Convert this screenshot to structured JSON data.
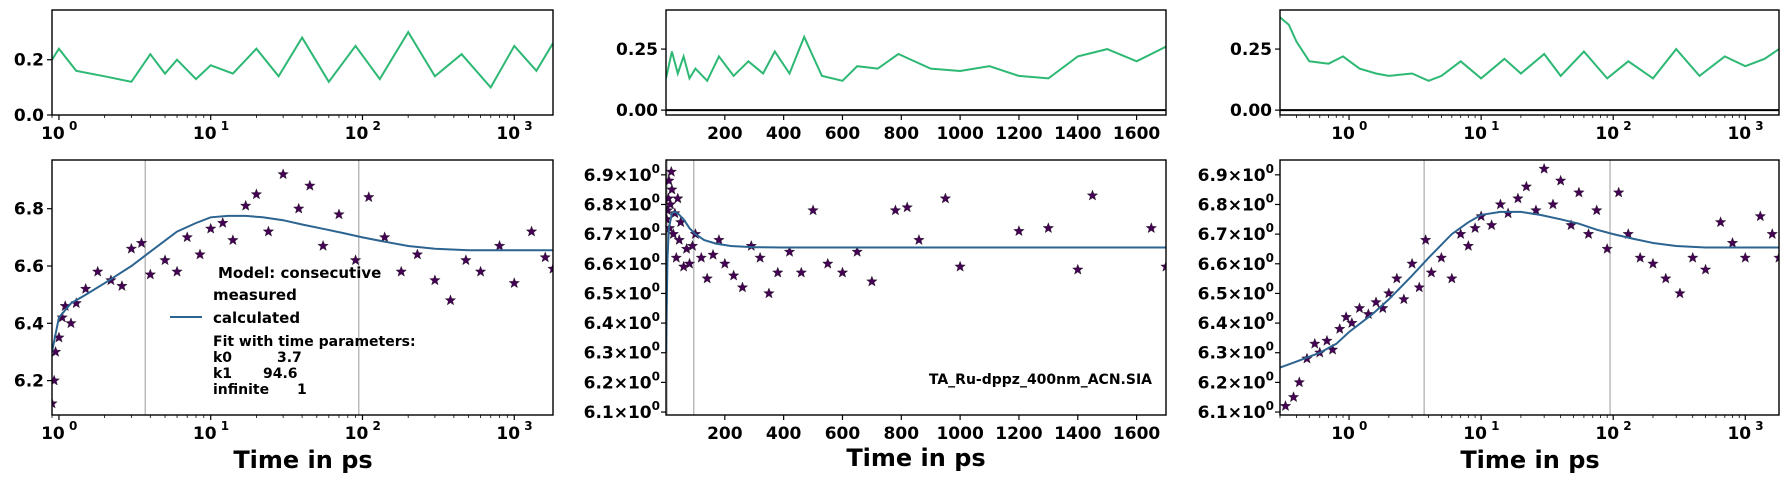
{
  "colors": {
    "residual": "#2db873",
    "measured": "#440154",
    "calculated": "#2c6491",
    "vline": "#9a9a9a",
    "zero_line": "#000000"
  },
  "legend": {
    "title": "Model: consecutive",
    "measured": "measured",
    "calculated": "calculated",
    "fit_header": "Fit with time parameters:",
    "params": [
      {
        "name": "k0",
        "value": "3.7"
      },
      {
        "name": "k1",
        "value": "94.6"
      },
      {
        "name": "infinite",
        "value": "1"
      }
    ]
  },
  "dataset_label": "TA_Ru-dppz_400nm_ACN.SIA",
  "x_label": "Time in ps",
  "chart_data": [
    {
      "type": "line",
      "panel": "residual-left",
      "xscale": "log",
      "xlim": [
        0.9,
        1800
      ],
      "ylim": [
        0,
        0.38
      ],
      "yticks": [
        0.0,
        0.2
      ],
      "ytick_labels": [
        "0.0",
        "0.2"
      ],
      "xticks": [
        1,
        10,
        100,
        1000
      ],
      "xtick_labels": [
        "10",
        "10",
        "10",
        "10"
      ],
      "xtick_exps": [
        "0",
        "1",
        "2",
        "3"
      ],
      "series": [
        {
          "x": [
            0.9,
            1.0,
            1.3,
            2.0,
            3.0,
            4.0,
            5.0,
            6.0,
            8.0,
            10.0,
            14.0,
            20.0,
            28.0,
            40.0,
            60.0,
            90.0,
            130.0,
            200.0,
            300.0,
            450.0,
            700.0,
            1000.0,
            1400.0,
            1800.0
          ],
          "y": [
            0.2,
            0.24,
            0.16,
            0.14,
            0.12,
            0.22,
            0.15,
            0.2,
            0.13,
            0.18,
            0.15,
            0.24,
            0.14,
            0.28,
            0.12,
            0.25,
            0.13,
            0.3,
            0.14,
            0.22,
            0.1,
            0.25,
            0.16,
            0.26
          ]
        }
      ]
    },
    {
      "type": "line",
      "panel": "residual-middle",
      "xscale": "linear",
      "xlim": [
        0,
        1700
      ],
      "ylim": [
        -0.02,
        0.41
      ],
      "yticks": [
        0.0,
        0.25
      ],
      "ytick_labels": [
        "0.00",
        "0.25"
      ],
      "xticks": [
        200,
        400,
        600,
        800,
        1000,
        1200,
        1400,
        1600
      ],
      "xtick_labels": [
        "200",
        "400",
        "600",
        "800",
        "1000",
        "1200",
        "1400",
        "1600"
      ],
      "series": [
        {
          "x": [
            0,
            20,
            40,
            60,
            80,
            100,
            140,
            180,
            230,
            280,
            330,
            370,
            420,
            470,
            530,
            600,
            650,
            720,
            790,
            900,
            1000,
            1100,
            1200,
            1300,
            1400,
            1500,
            1600,
            1700
          ],
          "y": [
            0.13,
            0.24,
            0.15,
            0.22,
            0.13,
            0.17,
            0.12,
            0.22,
            0.14,
            0.2,
            0.15,
            0.24,
            0.15,
            0.3,
            0.14,
            0.12,
            0.18,
            0.17,
            0.23,
            0.17,
            0.16,
            0.18,
            0.14,
            0.13,
            0.22,
            0.25,
            0.2,
            0.26
          ]
        }
      ]
    },
    {
      "type": "line",
      "panel": "residual-right",
      "xscale": "log",
      "xlim": [
        0.3,
        1800
      ],
      "ylim": [
        -0.02,
        0.41
      ],
      "yticks": [
        0.0,
        0.25
      ],
      "ytick_labels": [
        "0.00",
        "0.25"
      ],
      "xticks": [
        1,
        10,
        100,
        1000
      ],
      "xtick_labels": [
        "10",
        "10",
        "10",
        "10"
      ],
      "xtick_exps": [
        "0",
        "1",
        "2",
        "3"
      ],
      "series": [
        {
          "x": [
            0.3,
            0.35,
            0.4,
            0.5,
            0.7,
            0.9,
            1.2,
            1.6,
            2.0,
            3.0,
            4.0,
            5.0,
            7.0,
            10.0,
            15.0,
            20.0,
            30.0,
            40.0,
            60.0,
            90.0,
            130.0,
            200.0,
            300.0,
            450.0,
            700.0,
            1000.0,
            1400.0,
            1800.0
          ],
          "y": [
            0.38,
            0.35,
            0.28,
            0.2,
            0.19,
            0.22,
            0.17,
            0.15,
            0.14,
            0.15,
            0.12,
            0.14,
            0.2,
            0.13,
            0.21,
            0.15,
            0.23,
            0.14,
            0.24,
            0.13,
            0.2,
            0.13,
            0.25,
            0.14,
            0.22,
            0.18,
            0.21,
            0.25
          ]
        }
      ]
    },
    {
      "type": "scatter",
      "panel": "kinetics-left",
      "xscale": "log",
      "xlim": [
        0.9,
        1800
      ],
      "ylim": [
        6.08,
        6.97
      ],
      "yticks": [
        6.2,
        6.4,
        6.6,
        6.8
      ],
      "ytick_labels": [
        "6.2",
        "6.4",
        "6.6",
        "6.8"
      ],
      "xticks": [
        1,
        10,
        100,
        1000
      ],
      "xtick_labels": [
        "10",
        "10",
        "10",
        "10"
      ],
      "xtick_exps": [
        "0",
        "1",
        "2",
        "3"
      ],
      "vlines": [
        3.7,
        94.6
      ],
      "series": [
        {
          "name": "measured",
          "x": [
            0.9,
            0.93,
            0.95,
            1.0,
            1.05,
            1.1,
            1.2,
            1.3,
            1.5,
            1.8,
            2.2,
            2.6,
            3.0,
            3.5,
            4.0,
            5.0,
            6.0,
            7.0,
            8.5,
            10.0,
            12.0,
            14.0,
            17.0,
            20.0,
            24.0,
            30.0,
            38.0,
            45.0,
            55.0,
            70.0,
            90.0,
            110.0,
            140.0,
            180.0,
            230.0,
            300.0,
            380.0,
            480.0,
            600.0,
            800.0,
            1000.0,
            1300.0,
            1600.0,
            1800.0
          ],
          "y": [
            6.12,
            6.2,
            6.3,
            6.35,
            6.42,
            6.46,
            6.4,
            6.47,
            6.52,
            6.58,
            6.55,
            6.53,
            6.66,
            6.68,
            6.57,
            6.62,
            6.58,
            6.7,
            6.64,
            6.73,
            6.75,
            6.69,
            6.81,
            6.85,
            6.72,
            6.92,
            6.8,
            6.88,
            6.67,
            6.78,
            6.62,
            6.84,
            6.7,
            6.58,
            6.64,
            6.55,
            6.48,
            6.62,
            6.58,
            6.67,
            6.54,
            6.72,
            6.63,
            6.59
          ]
        },
        {
          "name": "calculated",
          "x": [
            0.9,
            1.0,
            1.2,
            1.5,
            2.0,
            3.0,
            4.0,
            6.0,
            8.0,
            10.0,
            13.0,
            17.0,
            22.0,
            30.0,
            40.0,
            55.0,
            75.0,
            100.0,
            140.0,
            200.0,
            300.0,
            500.0,
            800.0,
            1200.0,
            1800.0
          ],
          "y": [
            6.3,
            6.42,
            6.47,
            6.5,
            6.54,
            6.6,
            6.65,
            6.72,
            6.75,
            6.77,
            6.775,
            6.775,
            6.77,
            6.76,
            6.745,
            6.73,
            6.715,
            6.7,
            6.685,
            6.67,
            6.66,
            6.655,
            6.655,
            6.655,
            6.655
          ]
        }
      ]
    },
    {
      "type": "scatter",
      "panel": "kinetics-middle",
      "xscale": "linear",
      "xlim": [
        0,
        1700
      ],
      "ylim": [
        6.09,
        6.95
      ],
      "yticks": [
        6.1,
        6.2,
        6.3,
        6.4,
        6.5,
        6.6,
        6.7,
        6.8,
        6.9
      ],
      "ytick_labels": [
        "6.1",
        "6.2",
        "6.3",
        "6.4",
        "6.5",
        "6.6",
        "6.7",
        "6.8",
        "6.9"
      ],
      "xticks": [
        200,
        400,
        600,
        800,
        1000,
        1200,
        1400,
        1600
      ],
      "xtick_labels": [
        "200",
        "400",
        "600",
        "800",
        "1000",
        "1200",
        "1400",
        "1600"
      ],
      "vlines": [
        3.7,
        94.6
      ],
      "series": [
        {
          "name": "measured",
          "x": [
            2,
            5,
            8,
            10,
            12,
            15,
            18,
            20,
            25,
            30,
            35,
            40,
            45,
            50,
            60,
            70,
            80,
            90,
            100,
            120,
            140,
            160,
            180,
            200,
            230,
            260,
            290,
            320,
            350,
            380,
            420,
            460,
            500,
            550,
            600,
            650,
            700,
            780,
            820,
            860,
            950,
            1000,
            1200,
            1300,
            1400,
            1450,
            1650,
            1700
          ],
          "y": [
            6.75,
            6.78,
            6.82,
            6.88,
            6.72,
            6.8,
            6.91,
            6.85,
            6.7,
            6.77,
            6.62,
            6.82,
            6.68,
            6.74,
            6.59,
            6.65,
            6.6,
            6.66,
            6.7,
            6.62,
            6.55,
            6.63,
            6.68,
            6.6,
            6.56,
            6.52,
            6.66,
            6.62,
            6.5,
            6.57,
            6.64,
            6.57,
            6.78,
            6.6,
            6.57,
            6.64,
            6.54,
            6.78,
            6.79,
            6.68,
            6.82,
            6.59,
            6.71,
            6.72,
            6.58,
            6.83,
            6.72,
            6.59
          ]
        },
        {
          "name": "calculated",
          "x": [
            0,
            5,
            10,
            20,
            30,
            40,
            50,
            60,
            80,
            100,
            130,
            170,
            220,
            300,
            400,
            600,
            900,
            1300,
            1700
          ],
          "y": [
            6.3,
            6.62,
            6.72,
            6.77,
            6.775,
            6.77,
            6.76,
            6.75,
            6.72,
            6.7,
            6.68,
            6.668,
            6.66,
            6.656,
            6.655,
            6.655,
            6.655,
            6.655,
            6.655
          ]
        }
      ]
    },
    {
      "type": "scatter",
      "panel": "kinetics-right",
      "xscale": "log",
      "xlim": [
        0.3,
        1800
      ],
      "ylim": [
        6.09,
        6.95
      ],
      "yticks": [
        6.1,
        6.2,
        6.3,
        6.4,
        6.5,
        6.6,
        6.7,
        6.8,
        6.9
      ],
      "ytick_labels": [
        "6.1",
        "6.2",
        "6.3",
        "6.4",
        "6.5",
        "6.6",
        "6.7",
        "6.8",
        "6.9"
      ],
      "xticks": [
        1,
        10,
        100,
        1000
      ],
      "xtick_labels": [
        "10",
        "10",
        "10",
        "10"
      ],
      "xtick_exps": [
        "0",
        "1",
        "2",
        "3"
      ],
      "vlines": [
        3.7,
        94.6
      ],
      "series": [
        {
          "name": "measured",
          "x": [
            0.33,
            0.38,
            0.42,
            0.48,
            0.55,
            0.6,
            0.68,
            0.75,
            0.85,
            0.95,
            1.05,
            1.2,
            1.4,
            1.6,
            1.8,
            2.0,
            2.3,
            2.6,
            3.0,
            3.4,
            3.8,
            4.2,
            5.0,
            6.0,
            7.0,
            8.0,
            9.0,
            10.0,
            12.0,
            14.0,
            16.0,
            19.0,
            22.0,
            26.0,
            30.0,
            35.0,
            40.0,
            48.0,
            55.0,
            65.0,
            75.0,
            90.0,
            110.0,
            130.0,
            160.0,
            200.0,
            250.0,
            320.0,
            400.0,
            500.0,
            650.0,
            800.0,
            1000.0,
            1300.0,
            1600.0,
            1800.0
          ],
          "y": [
            6.12,
            6.15,
            6.2,
            6.28,
            6.33,
            6.3,
            6.34,
            6.31,
            6.38,
            6.42,
            6.4,
            6.45,
            6.43,
            6.47,
            6.45,
            6.5,
            6.55,
            6.48,
            6.6,
            6.52,
            6.68,
            6.57,
            6.62,
            6.55,
            6.7,
            6.66,
            6.72,
            6.76,
            6.73,
            6.8,
            6.77,
            6.82,
            6.86,
            6.78,
            6.92,
            6.8,
            6.88,
            6.73,
            6.84,
            6.7,
            6.78,
            6.65,
            6.84,
            6.7,
            6.62,
            6.6,
            6.55,
            6.5,
            6.62,
            6.58,
            6.74,
            6.67,
            6.62,
            6.76,
            6.7,
            6.62
          ]
        },
        {
          "name": "calculated",
          "x": [
            0.3,
            0.4,
            0.6,
            0.8,
            1.0,
            1.5,
            2.0,
            3.0,
            4.0,
            6.0,
            8.0,
            10.0,
            14.0,
            20.0,
            28.0,
            40.0,
            55.0,
            75.0,
            100.0,
            140.0,
            200.0,
            300.0,
            500.0,
            800.0,
            1200.0,
            1800.0
          ],
          "y": [
            6.25,
            6.27,
            6.3,
            6.33,
            6.37,
            6.43,
            6.48,
            6.56,
            6.62,
            6.7,
            6.74,
            6.765,
            6.775,
            6.775,
            6.765,
            6.75,
            6.735,
            6.715,
            6.7,
            6.685,
            6.67,
            6.66,
            6.655,
            6.655,
            6.655,
            6.655
          ]
        }
      ]
    }
  ]
}
